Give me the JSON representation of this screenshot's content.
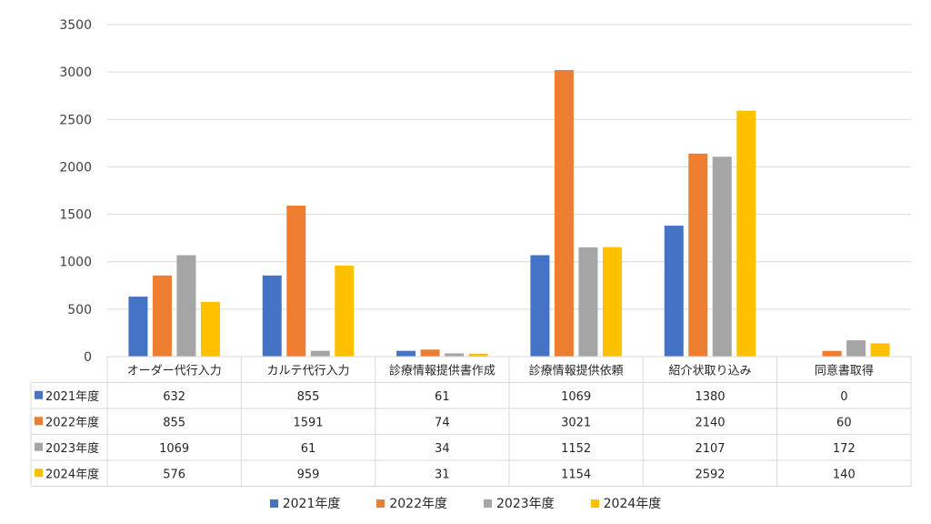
{
  "chart_data": {
    "type": "bar",
    "categories": [
      "オーダー代行入力",
      "カルテ代行入力",
      "診療情報提供書作成",
      "診療情報提供依頼",
      "紹介状取り込み",
      "同意書取得"
    ],
    "series": [
      {
        "name": "2021年度",
        "color": "#4472C4",
        "values": [
          632,
          855,
          61,
          1069,
          1380,
          0
        ]
      },
      {
        "name": "2022年度",
        "color": "#ED7D31",
        "values": [
          855,
          1591,
          74,
          3021,
          2140,
          60
        ]
      },
      {
        "name": "2023年度",
        "color": "#A5A5A5",
        "values": [
          1069,
          61,
          34,
          1152,
          2107,
          172
        ]
      },
      {
        "name": "2024年度",
        "color": "#FFC000",
        "values": [
          576,
          959,
          31,
          1154,
          2592,
          140
        ]
      }
    ],
    "ylim": [
      0,
      3500
    ],
    "yticks": [
      0,
      500,
      1000,
      1500,
      2000,
      2500,
      3000,
      3500
    ],
    "grid": true,
    "legend": "bottom",
    "data_table": true
  }
}
